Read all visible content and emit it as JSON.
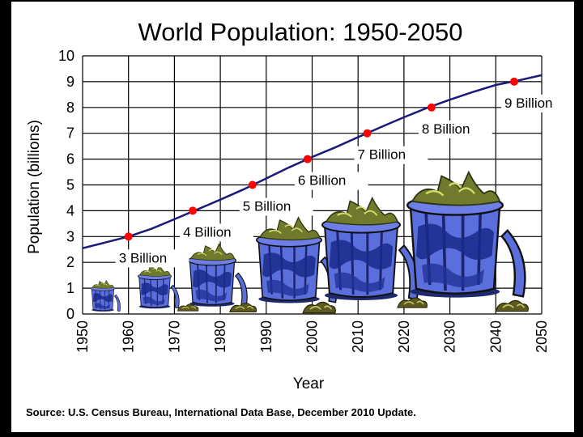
{
  "chart_data": {
    "type": "line",
    "title": "World Population: 1950-2050",
    "xlabel": "Year",
    "ylabel": "Population  (billions)",
    "xlim": [
      1950,
      2050
    ],
    "ylim": [
      0,
      10
    ],
    "x_ticks": [
      "1950",
      "1960",
      "1970",
      "1980",
      "1990",
      "2000",
      "2010",
      "2020",
      "2030",
      "2040",
      "2050"
    ],
    "y_ticks": [
      "0",
      "1",
      "2",
      "3",
      "4",
      "5",
      "6",
      "7",
      "8",
      "9",
      "10"
    ],
    "grid": true,
    "series": [
      {
        "x": [
          1950,
          1955,
          1960,
          1965,
          1970,
          1975,
          1980,
          1985,
          1990,
          1995,
          2000,
          2005,
          2010,
          2015,
          2020,
          2025,
          2030,
          2035,
          2040,
          2045,
          2050
        ],
        "values": [
          2.55,
          2.77,
          3.0,
          3.3,
          3.67,
          4.05,
          4.43,
          4.82,
          5.25,
          5.68,
          6.08,
          6.45,
          6.85,
          7.24,
          7.62,
          7.98,
          8.3,
          8.6,
          8.87,
          9.05,
          9.25
        ],
        "color": "#1a1a7a"
      }
    ],
    "milestones": [
      {
        "x": 1960,
        "y": 3,
        "label": "3 Billion"
      },
      {
        "x": 1974,
        "y": 4,
        "label": "4 Billion"
      },
      {
        "x": 1987,
        "y": 5,
        "label": "5 Billion"
      },
      {
        "x": 1999,
        "y": 6,
        "label": "6 Billion"
      },
      {
        "x": 2012,
        "y": 7,
        "label": "7 Billion"
      },
      {
        "x": 2026,
        "y": 8,
        "label": "8 Billion"
      },
      {
        "x": 2044,
        "y": 9,
        "label": "9 Billion"
      }
    ],
    "milestone_color": "#ff0000",
    "source": "Source: U.S. Census Bureau, International Data Base, December 2010 Update.",
    "illustration": "garbage-can-icon"
  }
}
